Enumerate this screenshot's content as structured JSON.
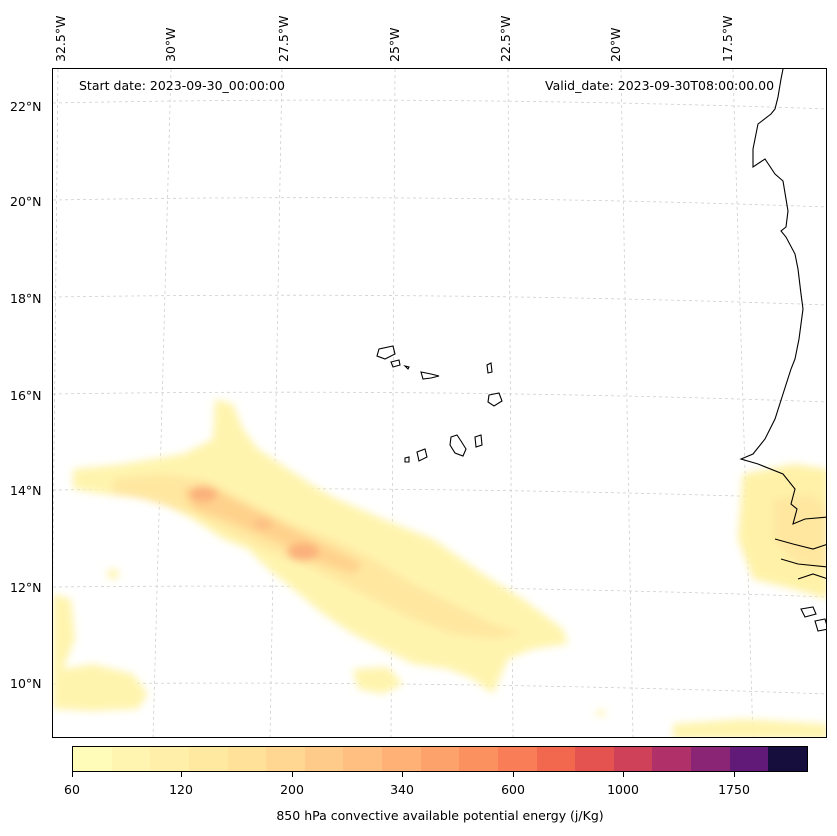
{
  "header": {
    "start_date": "Start date: 2023-09-30_00:00:00",
    "valid_date": "Valid_date: 2023-09-30T08:00:00.00"
  },
  "lat_labels": [
    "22°N",
    "20°N",
    "18°N",
    "16°N",
    "14°N",
    "12°N",
    "10°N"
  ],
  "lon_labels": [
    "32.5°W",
    "30°W",
    "27.5°W",
    "25°W",
    "22.5°W",
    "20°W",
    "17.5°W"
  ],
  "colorbar": {
    "title": "850 hPa convective available potential energy (j/Kg)",
    "tick_labels": [
      "60",
      "120",
      "200",
      "340",
      "600",
      "1000",
      "1750"
    ],
    "colors": [
      "#fffbb8",
      "#fff5b0",
      "#ffefa8",
      "#ffe9a0",
      "#ffe19a",
      "#ffd792",
      "#ffcb8a",
      "#ffbf80",
      "#ffb176",
      "#fea26c",
      "#fc9160",
      "#f97d56",
      "#f2684f",
      "#e4534f",
      "#cf4059",
      "#b0306a",
      "#8a2474",
      "#621a79",
      "#160f3d"
    ]
  }
}
